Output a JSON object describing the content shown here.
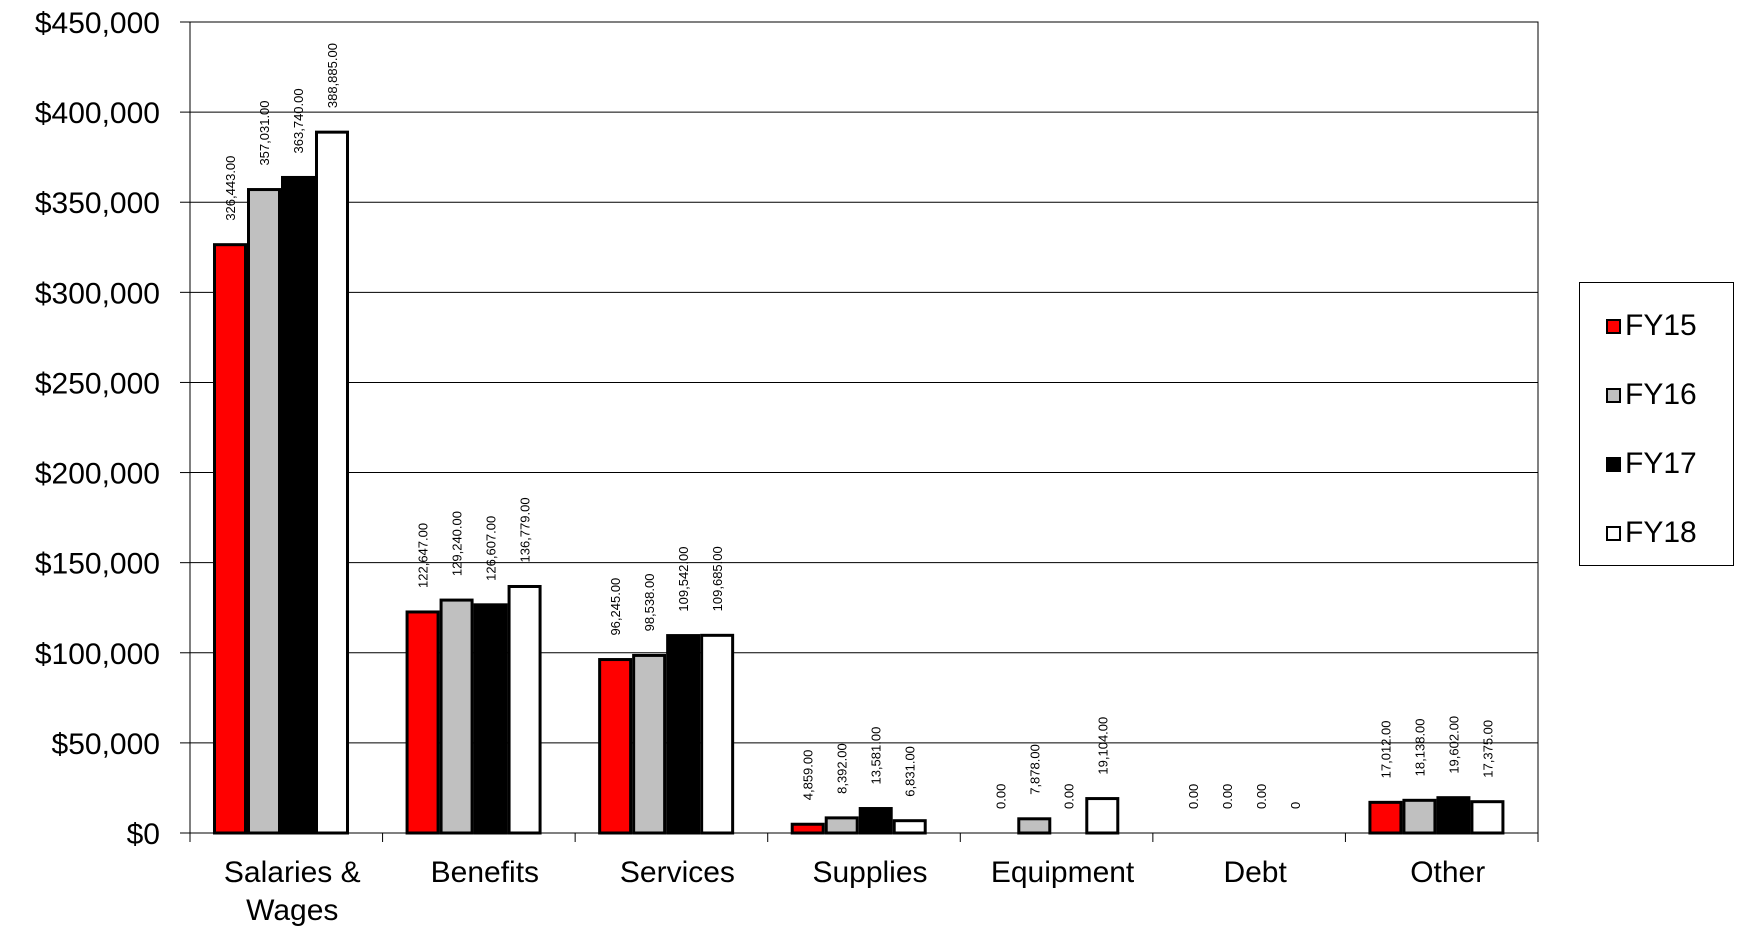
{
  "chart_data": {
    "type": "bar",
    "categories": [
      "Salaries & Wages",
      "Benefits",
      "Services",
      "Supplies",
      "Equipment",
      "Debt",
      "Other"
    ],
    "category_lines": [
      [
        "Salaries &",
        "Wages"
      ],
      [
        "Benefits"
      ],
      [
        "Services"
      ],
      [
        "Supplies"
      ],
      [
        "Equipment"
      ],
      [
        "Debt"
      ],
      [
        "Other"
      ]
    ],
    "series": [
      {
        "name": "FY15",
        "color": "#ff0000",
        "values": [
          326443,
          122647,
          96245,
          4859,
          0,
          0,
          17012
        ],
        "labels": [
          "326,443.00",
          "122,647.00",
          "96,245.00",
          "4,859.00",
          "0.00",
          "0.00",
          "17,012.00"
        ]
      },
      {
        "name": "FY16",
        "color": "#c0c0c0",
        "values": [
          357031,
          129240,
          98538,
          8392,
          7878,
          0,
          18138
        ],
        "labels": [
          "357,031.00",
          "129,240.00",
          "98,538.00",
          "8,392.00",
          "7,878.00",
          "0.00",
          "18,138.00"
        ]
      },
      {
        "name": "FY17",
        "color": "#000000",
        "values": [
          363740,
          126607,
          109542,
          13581,
          0,
          0,
          19602
        ],
        "labels": [
          "363,740.00",
          "126,607.00",
          "109,542.00",
          "13,581.00",
          "0.00",
          "0.00",
          "19,602.00"
        ]
      },
      {
        "name": "FY18",
        "color": "#ffffff",
        "values": [
          388885,
          136779,
          109685,
          6831,
          19104,
          0,
          17375
        ],
        "labels": [
          "388,885.00",
          "136,779.00",
          "109,685.00",
          "6,831.00",
          "19,104.00",
          "0",
          "17,375.00"
        ]
      }
    ],
    "yticks": [
      0,
      50000,
      100000,
      150000,
      200000,
      250000,
      300000,
      350000,
      400000,
      450000
    ],
    "ytick_labels": [
      "$0",
      "$50,000",
      "$100,000",
      "$150,000",
      "$200,000",
      "$250,000",
      "$300,000",
      "$350,000",
      "$400,000",
      "$450,000"
    ],
    "ylim": [
      0,
      450000
    ],
    "grid": true,
    "legend_position": "right"
  }
}
